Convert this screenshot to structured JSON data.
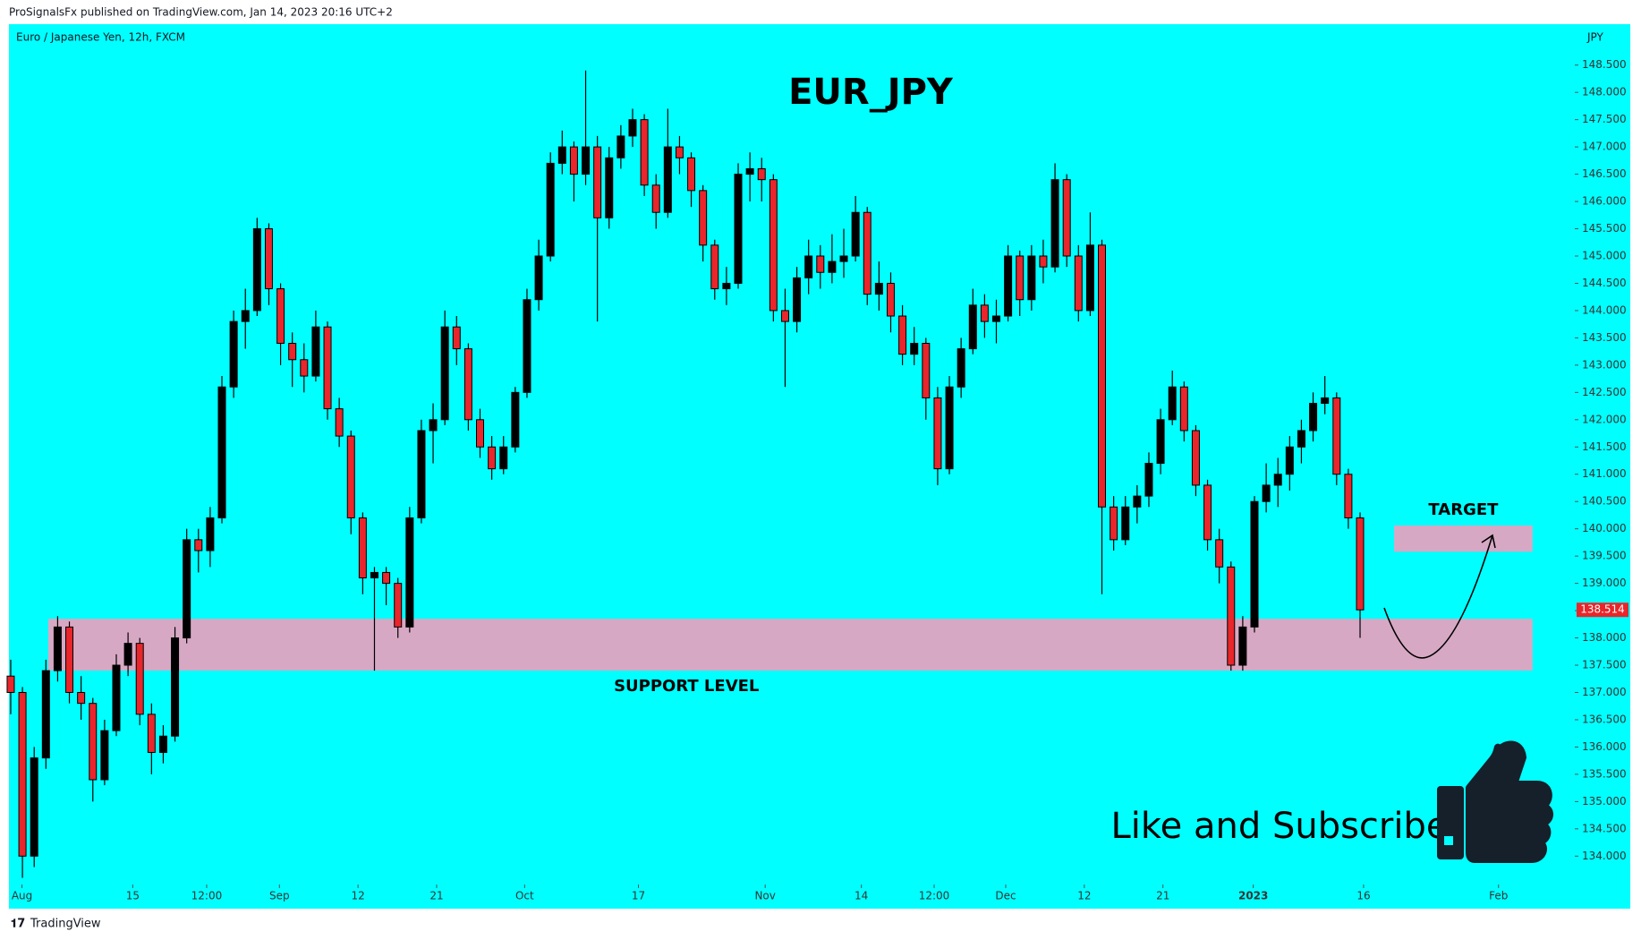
{
  "header": {
    "publisher": "ProSignalsFx published on TradingView.com, Jan 14, 2023 20:16 UTC+2"
  },
  "footer": {
    "brand": "TradingView"
  },
  "chart_data": {
    "type": "candlestick",
    "symbol": "Euro / Japanese Yen, 12h, FXCM",
    "title": "EUR_JPY",
    "y_unit": "JPY",
    "up_color": "#000000",
    "down_color": "#e8262b",
    "background": "#00ffff",
    "candles": [
      [
        137.3,
        137.6,
        136.6,
        137.0
      ],
      [
        137.0,
        137.1,
        133.6,
        134.0
      ],
      [
        134.0,
        136.0,
        133.8,
        135.8
      ],
      [
        135.8,
        137.6,
        135.6,
        137.4
      ],
      [
        137.4,
        138.4,
        137.2,
        138.2
      ],
      [
        138.2,
        138.3,
        136.8,
        137.0
      ],
      [
        137.0,
        137.3,
        136.5,
        136.8
      ],
      [
        136.8,
        136.9,
        135.0,
        135.4
      ],
      [
        135.4,
        136.5,
        135.3,
        136.3
      ],
      [
        136.3,
        137.7,
        136.2,
        137.5
      ],
      [
        137.5,
        138.1,
        137.3,
        137.9
      ],
      [
        137.9,
        138.0,
        136.4,
        136.6
      ],
      [
        136.6,
        136.8,
        135.5,
        135.9
      ],
      [
        135.9,
        136.4,
        135.7,
        136.2
      ],
      [
        136.2,
        138.2,
        136.1,
        138.0
      ],
      [
        138.0,
        140.0,
        137.9,
        139.8
      ],
      [
        139.8,
        140.0,
        139.2,
        139.6
      ],
      [
        139.6,
        140.4,
        139.3,
        140.2
      ],
      [
        140.2,
        142.8,
        140.1,
        142.6
      ],
      [
        142.6,
        144.0,
        142.4,
        143.8
      ],
      [
        143.8,
        144.4,
        143.3,
        144.0
      ],
      [
        144.0,
        145.7,
        143.9,
        145.5
      ],
      [
        145.5,
        145.6,
        144.1,
        144.4
      ],
      [
        144.4,
        144.5,
        143.0,
        143.4
      ],
      [
        143.4,
        143.6,
        142.6,
        143.1
      ],
      [
        143.1,
        143.4,
        142.5,
        142.8
      ],
      [
        142.8,
        144.0,
        142.7,
        143.7
      ],
      [
        143.7,
        143.8,
        142.0,
        142.2
      ],
      [
        142.2,
        142.4,
        141.5,
        141.7
      ],
      [
        141.7,
        141.8,
        139.9,
        140.2
      ],
      [
        140.2,
        140.3,
        138.8,
        139.1
      ],
      [
        139.1,
        139.3,
        137.4,
        139.2
      ],
      [
        139.2,
        139.3,
        138.6,
        139.0
      ],
      [
        139.0,
        139.1,
        138.0,
        138.2
      ],
      [
        138.2,
        140.4,
        138.1,
        140.2
      ],
      [
        140.2,
        142.0,
        140.1,
        141.8
      ],
      [
        141.8,
        142.3,
        141.2,
        142.0
      ],
      [
        142.0,
        144.0,
        141.9,
        143.7
      ],
      [
        143.7,
        143.9,
        143.0,
        143.3
      ],
      [
        143.3,
        143.4,
        141.8,
        142.0
      ],
      [
        142.0,
        142.2,
        141.3,
        141.5
      ],
      [
        141.5,
        141.7,
        140.9,
        141.1
      ],
      [
        141.1,
        141.7,
        141.0,
        141.5
      ],
      [
        141.5,
        142.6,
        141.4,
        142.5
      ],
      [
        142.5,
        144.4,
        142.4,
        144.2
      ],
      [
        144.2,
        145.3,
        144.0,
        145.0
      ],
      [
        145.0,
        146.9,
        144.9,
        146.7
      ],
      [
        146.7,
        147.3,
        146.5,
        147.0
      ],
      [
        147.0,
        147.1,
        146.0,
        146.5
      ],
      [
        146.5,
        148.4,
        146.3,
        147.0
      ],
      [
        147.0,
        147.2,
        143.8,
        145.7
      ],
      [
        145.7,
        147.0,
        145.5,
        146.8
      ],
      [
        146.8,
        147.4,
        146.6,
        147.2
      ],
      [
        147.2,
        147.7,
        147.0,
        147.5
      ],
      [
        147.5,
        147.6,
        146.1,
        146.3
      ],
      [
        146.3,
        146.5,
        145.5,
        145.8
      ],
      [
        145.8,
        147.7,
        145.7,
        147.0
      ],
      [
        147.0,
        147.2,
        146.5,
        146.8
      ],
      [
        146.8,
        146.9,
        145.9,
        146.2
      ],
      [
        146.2,
        146.3,
        144.9,
        145.2
      ],
      [
        145.2,
        145.3,
        144.2,
        144.4
      ],
      [
        144.4,
        144.8,
        144.1,
        144.5
      ],
      [
        144.5,
        146.7,
        144.4,
        146.5
      ],
      [
        146.5,
        146.9,
        146.0,
        146.6
      ],
      [
        146.6,
        146.8,
        146.0,
        146.4
      ],
      [
        146.4,
        146.5,
        143.8,
        144.0
      ],
      [
        144.0,
        144.4,
        142.6,
        143.8
      ],
      [
        143.8,
        144.8,
        143.6,
        144.6
      ],
      [
        144.6,
        145.3,
        144.3,
        145.0
      ],
      [
        145.0,
        145.2,
        144.4,
        144.7
      ],
      [
        144.7,
        145.4,
        144.5,
        144.9
      ],
      [
        144.9,
        145.5,
        144.6,
        145.0
      ],
      [
        145.0,
        146.1,
        144.9,
        145.8
      ],
      [
        145.8,
        145.9,
        144.1,
        144.3
      ],
      [
        144.3,
        144.9,
        144.0,
        144.5
      ],
      [
        144.5,
        144.7,
        143.6,
        143.9
      ],
      [
        143.9,
        144.1,
        143.0,
        143.2
      ],
      [
        143.2,
        143.7,
        143.0,
        143.4
      ],
      [
        143.4,
        143.5,
        142.0,
        142.4
      ],
      [
        142.4,
        142.6,
        140.8,
        141.1
      ],
      [
        141.1,
        142.8,
        141.0,
        142.6
      ],
      [
        142.6,
        143.5,
        142.4,
        143.3
      ],
      [
        143.3,
        144.4,
        143.2,
        144.1
      ],
      [
        144.1,
        144.3,
        143.5,
        143.8
      ],
      [
        143.8,
        144.2,
        143.4,
        143.9
      ],
      [
        143.9,
        145.2,
        143.8,
        145.0
      ],
      [
        145.0,
        145.1,
        143.9,
        144.2
      ],
      [
        144.2,
        145.2,
        144.0,
        145.0
      ],
      [
        145.0,
        145.3,
        144.5,
        144.8
      ],
      [
        144.8,
        146.7,
        144.7,
        146.4
      ],
      [
        146.4,
        146.5,
        144.8,
        145.0
      ],
      [
        145.0,
        145.2,
        143.8,
        144.0
      ],
      [
        144.0,
        145.8,
        143.9,
        145.2
      ],
      [
        145.2,
        145.3,
        138.8,
        140.4
      ],
      [
        140.4,
        140.6,
        139.6,
        139.8
      ],
      [
        139.8,
        140.6,
        139.7,
        140.4
      ],
      [
        140.4,
        140.8,
        140.1,
        140.6
      ],
      [
        140.6,
        141.4,
        140.4,
        141.2
      ],
      [
        141.2,
        142.2,
        141.0,
        142.0
      ],
      [
        142.0,
        142.9,
        141.9,
        142.6
      ],
      [
        142.6,
        142.7,
        141.6,
        141.8
      ],
      [
        141.8,
        141.9,
        140.6,
        140.8
      ],
      [
        140.8,
        140.9,
        139.6,
        139.8
      ],
      [
        139.8,
        140.0,
        139.0,
        139.3
      ],
      [
        139.3,
        139.4,
        137.4,
        137.5
      ],
      [
        137.5,
        138.4,
        137.4,
        138.2
      ],
      [
        138.2,
        140.6,
        138.1,
        140.5
      ],
      [
        140.5,
        141.2,
        140.3,
        140.8
      ],
      [
        140.8,
        141.3,
        140.4,
        141.0
      ],
      [
        141.0,
        141.7,
        140.7,
        141.5
      ],
      [
        141.5,
        142.0,
        141.2,
        141.8
      ],
      [
        141.8,
        142.5,
        141.6,
        142.3
      ],
      [
        142.3,
        142.8,
        142.1,
        142.4
      ],
      [
        142.4,
        142.5,
        140.8,
        141.0
      ],
      [
        141.0,
        141.1,
        140.0,
        140.2
      ],
      [
        140.2,
        140.3,
        138.0,
        138.514
      ]
    ],
    "xlim": [
      -0.15,
      133.3
    ],
    "xticks": [
      {
        "value": 0.96,
        "label": "Aug"
      },
      {
        "value": 10.4,
        "label": "15"
      },
      {
        "value": 16.7,
        "label": "12:00"
      },
      {
        "value": 22.9,
        "label": "Sep"
      },
      {
        "value": 29.6,
        "label": "12"
      },
      {
        "value": 36.3,
        "label": "21"
      },
      {
        "value": 43.8,
        "label": "Oct"
      },
      {
        "value": 53.5,
        "label": "17"
      },
      {
        "value": 64.3,
        "label": "Nov"
      },
      {
        "value": 72.5,
        "label": "14"
      },
      {
        "value": 78.7,
        "label": "12:00"
      },
      {
        "value": 84.8,
        "label": "Dec"
      },
      {
        "value": 91.5,
        "label": "12"
      },
      {
        "value": 98.2,
        "label": "21"
      },
      {
        "value": 105.9,
        "label": "2023"
      },
      {
        "value": 115.3,
        "label": "16"
      },
      {
        "value": 126.8,
        "label": "Feb"
      }
    ],
    "ylim": [
      133.48,
      149.25
    ],
    "yticks": [
      {
        "value": 134.0,
        "label": "134.000"
      },
      {
        "value": 134.5,
        "label": "134.500"
      },
      {
        "value": 135.0,
        "label": "135.000"
      },
      {
        "value": 135.5,
        "label": "135.500"
      },
      {
        "value": 136.0,
        "label": "136.000"
      },
      {
        "value": 136.5,
        "label": "136.500"
      },
      {
        "value": 137.0,
        "label": "137.000"
      },
      {
        "value": 137.5,
        "label": "137.500"
      },
      {
        "value": 138.0,
        "label": "138.000"
      },
      {
        "value": 138.5,
        "label": "138.500"
      },
      {
        "value": 139.0,
        "label": "139.000"
      },
      {
        "value": 139.5,
        "label": "139.500"
      },
      {
        "value": 140.0,
        "label": "140.000"
      },
      {
        "value": 140.5,
        "label": "140.500"
      },
      {
        "value": 141.0,
        "label": "141.000"
      },
      {
        "value": 141.5,
        "label": "141.500"
      },
      {
        "value": 142.0,
        "label": "142.000"
      },
      {
        "value": 142.5,
        "label": "142.500"
      },
      {
        "value": 143.0,
        "label": "143.000"
      },
      {
        "value": 143.5,
        "label": "143.500"
      },
      {
        "value": 144.0,
        "label": "144.000"
      },
      {
        "value": 144.5,
        "label": "144.500"
      },
      {
        "value": 145.0,
        "label": "145.000"
      },
      {
        "value": 145.5,
        "label": "145.500"
      },
      {
        "value": 146.0,
        "label": "146.000"
      },
      {
        "value": 146.5,
        "label": "146.500"
      },
      {
        "value": 147.0,
        "label": "147.000"
      },
      {
        "value": 147.5,
        "label": "147.500"
      },
      {
        "value": 148.0,
        "label": "148.000"
      },
      {
        "value": 148.5,
        "label": "148.500"
      }
    ],
    "zones": [
      {
        "label": "SUPPORT LEVEL",
        "color": "#d7a8c4",
        "x": [
          3.2,
          129.7
        ],
        "y": [
          137.4,
          138.35
        ]
      },
      {
        "label": "TARGET",
        "color": "#d7a8c4",
        "x": [
          117.9,
          129.7
        ],
        "y": [
          139.58,
          140.06
        ]
      }
    ],
    "call_to_action": "Like and Subscribe"
  }
}
